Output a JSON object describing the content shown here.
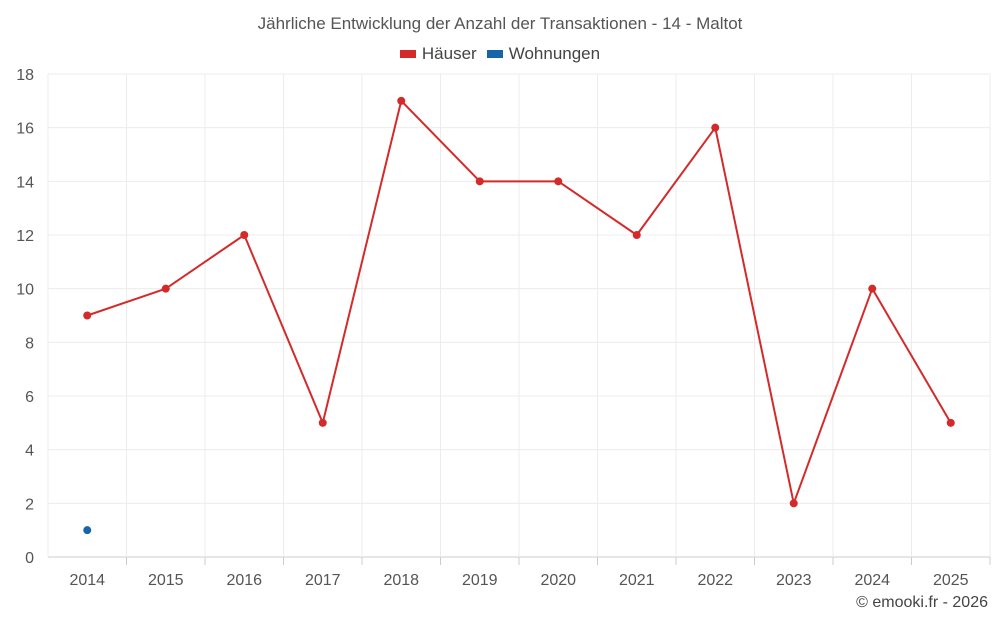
{
  "chart_data": {
    "type": "line",
    "title": "Jährliche Entwicklung der Anzahl der Transaktionen - 14 - Maltot",
    "xlabel": "",
    "ylabel": "",
    "categories": [
      "2014",
      "2015",
      "2016",
      "2017",
      "2018",
      "2019",
      "2020",
      "2021",
      "2022",
      "2023",
      "2024",
      "2025"
    ],
    "series": [
      {
        "name": "Häuser",
        "color": "#d42a2a",
        "values": [
          9,
          10,
          12,
          5,
          17,
          14,
          14,
          12,
          16,
          2,
          10,
          5
        ]
      },
      {
        "name": "Wohnungen",
        "color": "#1565a8",
        "values": [
          1,
          null,
          null,
          null,
          null,
          null,
          null,
          null,
          null,
          null,
          null,
          null
        ]
      }
    ],
    "ylim": [
      0,
      18
    ],
    "yticks": [
      0,
      2,
      4,
      6,
      8,
      10,
      12,
      14,
      16,
      18
    ],
    "grid": true,
    "legend": "top-center"
  },
  "credit": "© emooki.fr - 2026"
}
